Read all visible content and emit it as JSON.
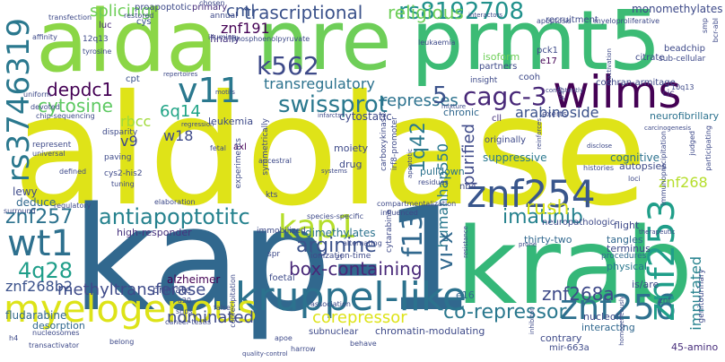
{
  "cloud": {
    "words": [
      {
        "text": "aldolase",
        "color": "#dfe318"
      },
      {
        "text": "kap-1",
        "color": "#31688e"
      },
      {
        "text": "alda",
        "color": "#8bd646"
      },
      {
        "text": "nre",
        "color": "#6ece58"
      },
      {
        "text": "prmt5",
        "color": "#3cbb75"
      },
      {
        "text": "krab",
        "color": "#35b779"
      },
      {
        "text": "wilms",
        "color": "#440154"
      },
      {
        "text": "rs3746319",
        "color": "#2a788e"
      },
      {
        "text": "rs8192708",
        "color": "#21918c"
      },
      {
        "text": "kruppel-like",
        "color": "#2c728e"
      },
      {
        "text": "myelogenous",
        "color": "#dde318"
      },
      {
        "text": "znf256",
        "color": "#2d708e"
      },
      {
        "text": "znf254",
        "color": "#39568c"
      },
      {
        "text": "znf253",
        "color": "#1f9e89"
      },
      {
        "text": "wt1",
        "color": "#2d708e"
      },
      {
        "text": "kap1",
        "color": "#b5de2b"
      },
      {
        "text": "antiapoptotitc",
        "color": "#26828e"
      },
      {
        "text": "v11",
        "color": "#2a788e"
      },
      {
        "text": "k562",
        "color": "#3e4a89"
      },
      {
        "text": "swissprot",
        "color": "#2a788e"
      },
      {
        "text": "cagc-3",
        "color": "#482878"
      },
      {
        "text": "depdc1",
        "color": "#440154"
      },
      {
        "text": "cytosine",
        "color": "#5ec962"
      },
      {
        "text": "trascriptional",
        "color": "#3b528b"
      },
      {
        "text": "religious",
        "color": "#6ece58"
      },
      {
        "text": "transregulatory",
        "color": "#2c728e"
      },
      {
        "text": "represses",
        "color": "#2c728e"
      },
      {
        "text": "imatinib",
        "color": "#26828e"
      },
      {
        "text": "1q42",
        "color": "#2a788e"
      },
      {
        "text": "humanhap550",
        "color": "#2a788e"
      },
      {
        "text": "f13",
        "color": "#31688e"
      },
      {
        "text": "vi-x",
        "color": "#31688e"
      },
      {
        "text": "4q28",
        "color": "#1f9e89"
      },
      {
        "text": "znf257",
        "color": "#2c728e"
      },
      {
        "text": "arginine",
        "color": "#3b528b"
      },
      {
        "text": "box-containing",
        "color": "#482878"
      },
      {
        "text": "methyltransferase",
        "color": "#3e4a89"
      },
      {
        "text": "znf268b2",
        "color": "#3b528b"
      },
      {
        "text": "co-repressor",
        "color": "#2a788e"
      },
      {
        "text": "znf268a",
        "color": "#3e4a89"
      },
      {
        "text": "imputated",
        "color": "#26828e"
      },
      {
        "text": "rush",
        "color": "#d8e219"
      },
      {
        "text": "corepressor",
        "color": "#dde318"
      },
      {
        "text": "nominated",
        "color": "#3e4a89"
      },
      {
        "text": "purified",
        "color": "#3e4a89"
      },
      {
        "text": "arabinoside",
        "color": "#3b528b"
      },
      {
        "text": "cml",
        "color": "#3b528b"
      },
      {
        "text": "splicing",
        "color": "#6ece58"
      },
      {
        "text": "znf191",
        "color": "#440154"
      },
      {
        "text": "6q14",
        "color": "#20a486"
      },
      {
        "text": "rbcc",
        "color": "#a0da39"
      },
      {
        "text": "v9",
        "color": "#3e4a89"
      },
      {
        "text": "w18",
        "color": "#3e4a89"
      },
      {
        "text": "5",
        "color": "#3b528b"
      },
      {
        "text": "znf268",
        "color": "#b5de2b"
      },
      {
        "text": "monomethylates",
        "color": "#3e4a89"
      },
      {
        "text": "fludarabine",
        "color": "#31688e"
      },
      {
        "text": "cytostatic",
        "color": "#3e4a89"
      },
      {
        "text": "neurofibrillary",
        "color": "#2c728e"
      },
      {
        "text": "alzheimer",
        "color": "#440154"
      },
      {
        "text": "dimethylates",
        "color": "#2c728e"
      },
      {
        "text": "suppressive",
        "color": "#2a788e"
      },
      {
        "text": "cognitive",
        "color": "#2c728e"
      },
      {
        "text": "leukemia",
        "color": "#3e4a89"
      },
      {
        "text": "autopsies",
        "color": "#3e4a89"
      },
      {
        "text": "lewy",
        "color": "#3e4a89"
      },
      {
        "text": "deduce",
        "color": "#31688e"
      },
      {
        "text": "high-responder",
        "color": "#46327e"
      },
      {
        "text": "primate",
        "color": "#3e4a89"
      },
      {
        "text": "desorption",
        "color": "#31688e"
      },
      {
        "text": "thirty-two",
        "color": "#31688e"
      },
      {
        "text": "physical",
        "color": "#2a788e"
      },
      {
        "text": "pulldown",
        "color": "#2c728e"
      },
      {
        "text": "is/are",
        "color": "#3e4a89"
      },
      {
        "text": "e16",
        "color": "#31688e"
      },
      {
        "text": "nucleoli",
        "color": "#3e4a89"
      },
      {
        "text": "interacting",
        "color": "#31688e"
      },
      {
        "text": "contrary",
        "color": "#3e4a89"
      },
      {
        "text": "45-amino",
        "color": "#472d7b"
      },
      {
        "text": "terminus",
        "color": "#3e4a89"
      },
      {
        "text": "procedures",
        "color": "#31688e"
      },
      {
        "text": "chronic",
        "color": "#31688e"
      },
      {
        "text": "drug",
        "color": "#3e4a89"
      },
      {
        "text": "moiety",
        "color": "#3e4a89"
      },
      {
        "text": "tangles",
        "color": "#31688e"
      },
      {
        "text": "flight",
        "color": "#3e4a89"
      },
      {
        "text": "finally",
        "color": "#46327e"
      },
      {
        "text": "primary",
        "color": "#472d7b"
      },
      {
        "text": "cys",
        "color": "#3b528b"
      },
      {
        "text": "luc",
        "color": "#482878"
      },
      {
        "text": "cpt",
        "color": "#3b528b"
      },
      {
        "text": "axl",
        "color": "#440154"
      },
      {
        "text": "nb4",
        "color": "#3e4a89"
      },
      {
        "text": "cll",
        "color": "#46327e"
      },
      {
        "text": "cic",
        "color": "#46327e"
      },
      {
        "text": "e17",
        "color": "#440154"
      },
      {
        "text": "pck1",
        "color": "#3e4a89"
      },
      {
        "text": "citrate",
        "color": "#3e4a89"
      },
      {
        "text": "beadchip",
        "color": "#3e4a89"
      },
      {
        "text": "sub-cellular",
        "color": "#3e4a89"
      },
      {
        "text": "cochran-armitage",
        "color": "#3e4a89"
      },
      {
        "text": "isoform",
        "color": "#6ece58"
      },
      {
        "text": "partners",
        "color": "#3e4a89"
      },
      {
        "text": "cooh",
        "color": "#3e4a89"
      },
      {
        "text": "insight",
        "color": "#3e4a89"
      },
      {
        "text": "recruitment",
        "color": "#3e4a89"
      },
      {
        "text": "apoptosis",
        "color": "#3e4a89"
      },
      {
        "text": "myeloproliferative",
        "color": "#3e4a89"
      },
      {
        "text": "annual",
        "color": "#3e4a89"
      },
      {
        "text": "illumina",
        "color": "#3e4a89"
      },
      {
        "text": "restored",
        "color": "#3e4a89"
      },
      {
        "text": "transfection",
        "color": "#3e4a89"
      },
      {
        "text": "proapoptotic",
        "color": "#3e4a89"
      },
      {
        "text": "chosen",
        "color": "#3e4a89"
      },
      {
        "text": "phosphoenolpyruvate",
        "color": "#3e4a89"
      },
      {
        "text": "12q13",
        "color": "#3e4a89"
      },
      {
        "text": "repertoires",
        "color": "#3e4a89"
      },
      {
        "text": "motifs",
        "color": "#3e4a89"
      },
      {
        "text": "uniform",
        "color": "#3e4a89"
      },
      {
        "text": "devoted",
        "color": "#3e4a89"
      },
      {
        "text": "chip-sequencing",
        "color": "#3e4a89"
      },
      {
        "text": "represent",
        "color": "#3e4a89"
      },
      {
        "text": "universal",
        "color": "#3e4a89"
      },
      {
        "text": "disparity",
        "color": "#3e4a89"
      },
      {
        "text": "paving",
        "color": "#3e4a89"
      },
      {
        "text": "defined",
        "color": "#3e4a89"
      },
      {
        "text": "tuning",
        "color": "#3e4a89"
      },
      {
        "text": "cys2-his2",
        "color": "#3e4a89"
      },
      {
        "text": "regulatory",
        "color": "#3e4a89"
      },
      {
        "text": "surround",
        "color": "#3e4a89"
      },
      {
        "text": "elaboration",
        "color": "#3e4a89"
      },
      {
        "text": "immobilized",
        "color": "#3e4a89"
      },
      {
        "text": "species-specific",
        "color": "#3e4a89"
      },
      {
        "text": "ionization-time",
        "color": "#3e4a89"
      },
      {
        "text": "alternating",
        "color": "#3e4a89"
      },
      {
        "text": "a20",
        "color": "#3e4a89"
      },
      {
        "text": "snps",
        "color": "#3e4a89"
      },
      {
        "text": "false",
        "color": "#3e4a89"
      },
      {
        "text": "coprecipitation",
        "color": "#3e4a89"
      },
      {
        "text": "foetal",
        "color": "#3e4a89"
      },
      {
        "text": "spr",
        "color": "#3e4a89"
      },
      {
        "text": "zf",
        "color": "#3e4a89"
      },
      {
        "text": "association",
        "color": "#3e4a89"
      },
      {
        "text": "subnuclear",
        "color": "#3e4a89"
      },
      {
        "text": "chromatin-modulating",
        "color": "#3e4a89"
      },
      {
        "text": "apoe",
        "color": "#3e4a89"
      },
      {
        "text": "behave",
        "color": "#3e4a89"
      },
      {
        "text": "harrow",
        "color": "#3e4a89"
      },
      {
        "text": "mir-663a",
        "color": "#3e4a89"
      },
      {
        "text": "genitourinary",
        "color": "#3e4a89"
      },
      {
        "text": "znf",
        "color": "#3e4a89"
      },
      {
        "text": "cancer-testis",
        "color": "#3e4a89"
      },
      {
        "text": "nucleosomes",
        "color": "#3e4a89"
      },
      {
        "text": "transactivator",
        "color": "#3e4a89"
      },
      {
        "text": "belong",
        "color": "#3e4a89"
      },
      {
        "text": "h4",
        "color": "#3e4a89"
      },
      {
        "text": "exerts",
        "color": "#3e4a89"
      },
      {
        "text": "loci",
        "color": "#3e4a89"
      },
      {
        "text": "experiments",
        "color": "#3e4a89"
      },
      {
        "text": "symmetrically",
        "color": "#3e4a89"
      },
      {
        "text": "ancestral",
        "color": "#3e4a89"
      },
      {
        "text": "fetal",
        "color": "#3e4a89"
      },
      {
        "text": "kts",
        "color": "#3e4a89"
      },
      {
        "text": "originally",
        "color": "#3e4a89"
      },
      {
        "text": "histories",
        "color": "#3e4a89"
      },
      {
        "text": "residues",
        "color": "#3e4a89"
      },
      {
        "text": "compartmentalization",
        "color": "#3e4a89"
      },
      {
        "text": "influenced",
        "color": "#3e4a89"
      },
      {
        "text": "carboxykinase",
        "color": "#3e4a89"
      },
      {
        "text": "irf8-promoter",
        "color": "#3e4a89"
      },
      {
        "text": "infarcts",
        "color": "#3e4a89"
      },
      {
        "text": "mixture",
        "color": "#3e4a89"
      },
      {
        "text": "regression",
        "color": "#3e4a89"
      },
      {
        "text": "affinity",
        "color": "#3e4a89"
      },
      {
        "text": "neuropathologic",
        "color": "#3e4a89"
      },
      {
        "text": "judged",
        "color": "#3e4a89"
      },
      {
        "text": "participating",
        "color": "#3e4a89"
      },
      {
        "text": "10q13",
        "color": "#3e4a89"
      },
      {
        "text": "smp",
        "color": "#3e4a89"
      },
      {
        "text": "bcr-abl",
        "color": "#3e4a89"
      },
      {
        "text": "leukaemia",
        "color": "#3e4a89"
      },
      {
        "text": "interactors",
        "color": "#3e4a89"
      },
      {
        "text": "tyrosine",
        "color": "#3e4a89"
      },
      {
        "text": "systems",
        "color": "#3e4a89"
      },
      {
        "text": "consistently",
        "color": "#3e4a89"
      },
      {
        "text": "immunoprecipitation",
        "color": "#3e4a89"
      },
      {
        "text": "carcinogenesis",
        "color": "#3e4a89"
      },
      {
        "text": "disclose",
        "color": "#3e4a89"
      },
      {
        "text": "reinforces",
        "color": "#3e4a89"
      },
      {
        "text": "p97",
        "color": "#3e4a89"
      },
      {
        "text": "reactivation",
        "color": "#3e4a89"
      },
      {
        "text": "cytarabine",
        "color": "#3e4a89"
      },
      {
        "text": "apoptotic",
        "color": "#3e4a89"
      },
      {
        "text": "therapeutic",
        "color": "#3e4a89"
      },
      {
        "text": "resistance",
        "color": "#3e4a89"
      },
      {
        "text": "prone",
        "color": "#3e4a89"
      },
      {
        "text": "homogeneously",
        "color": "#3e4a89"
      },
      {
        "text": "quality-control",
        "color": "#3e4a89"
      },
      {
        "text": "inhibitor",
        "color": "#3e4a89"
      }
    ]
  }
}
